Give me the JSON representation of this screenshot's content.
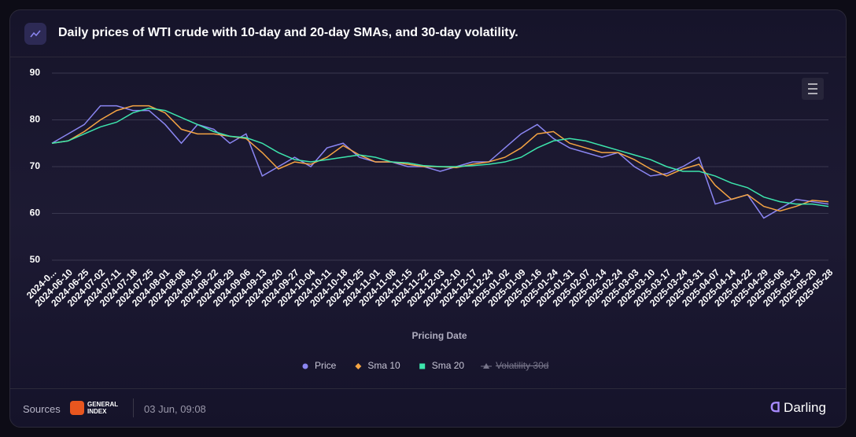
{
  "header": {
    "title": "Daily prices of WTI crude with 10-day and 20-day SMAs, and 30-day volatility."
  },
  "chart_data": {
    "type": "line",
    "xlabel": "Pricing Date",
    "categories": [
      "2024-0...",
      "2024-06-10",
      "2024-06-25",
      "2024-07-02",
      "2024-07-11",
      "2024-07-18",
      "2024-07-25",
      "2024-08-01",
      "2024-08-08",
      "2024-08-15",
      "2024-08-22",
      "2024-08-29",
      "2024-09-06",
      "2024-09-13",
      "2024-09-20",
      "2024-09-27",
      "2024-10-04",
      "2024-10-11",
      "2024-10-18",
      "2024-10-25",
      "2024-11-01",
      "2024-11-08",
      "2024-11-15",
      "2024-11-22",
      "2024-12-03",
      "2024-12-10",
      "2024-12-17",
      "2024-12-24",
      "2025-01-02",
      "2025-01-09",
      "2025-01-16",
      "2025-01-24",
      "2025-01-31",
      "2025-02-07",
      "2025-02-14",
      "2025-02-24",
      "2025-03-03",
      "2025-03-10",
      "2025-03-17",
      "2025-03-24",
      "2025-03-31",
      "2025-04-07",
      "2025-04-14",
      "2025-04-22",
      "2025-04-29",
      "2025-05-06",
      "2025-05-13",
      "2025-05-20",
      "2025-05-28"
    ],
    "series": [
      {
        "name": "Price",
        "color": "#8b86f2",
        "values": [
          75,
          77,
          79,
          83,
          83,
          82,
          82,
          79,
          75,
          79,
          78,
          75,
          77,
          68,
          70,
          72,
          70,
          74,
          75,
          72,
          71,
          71,
          70,
          70,
          69,
          70,
          71,
          71,
          74,
          77,
          79,
          76,
          74,
          73,
          72,
          73,
          70,
          68,
          68.5,
          70,
          72,
          62,
          63,
          64,
          59,
          61,
          63,
          62.5,
          62
        ]
      },
      {
        "name": "Sma 10",
        "color": "#f5a443",
        "values": [
          75,
          75.5,
          77.5,
          80,
          82,
          83,
          83,
          81.5,
          78,
          77,
          77,
          76.5,
          76,
          73,
          69.5,
          71,
          70.5,
          72,
          74.5,
          72.5,
          71,
          71,
          70.5,
          70,
          70,
          69.8,
          70.5,
          71,
          72,
          74,
          77,
          77.5,
          75,
          74,
          73,
          73,
          71.5,
          69.5,
          68,
          69.5,
          70.5,
          66,
          63,
          64,
          61.5,
          60.5,
          61.5,
          62.8,
          62.5
        ]
      },
      {
        "name": "Sma 20",
        "color": "#3de6ad",
        "values": [
          75,
          75.5,
          77,
          78.5,
          79.5,
          81.5,
          82.5,
          82,
          80.5,
          79,
          77.5,
          76.5,
          76.2,
          75,
          73,
          71.5,
          71,
          71.5,
          72,
          72.5,
          72,
          71,
          70.8,
          70.2,
          70,
          70,
          70.2,
          70.5,
          71,
          72,
          74,
          75.5,
          76,
          75.5,
          74.5,
          73.5,
          72.5,
          71.5,
          70,
          69,
          69,
          68,
          66.5,
          65.5,
          63.5,
          62.5,
          62,
          62,
          61.5
        ]
      },
      {
        "name": "Volatility 30d",
        "color": "#77758a",
        "hidden": true
      }
    ],
    "ylim": [
      50,
      90
    ],
    "yticks": [
      50,
      60,
      70,
      80,
      90
    ],
    "grid": true
  },
  "footer": {
    "sources": "Sources",
    "logo_top": "GENERAL",
    "logo_bottom": "INDEX",
    "timestamp": "03 Jun, 09:08",
    "brand": "Darling"
  }
}
